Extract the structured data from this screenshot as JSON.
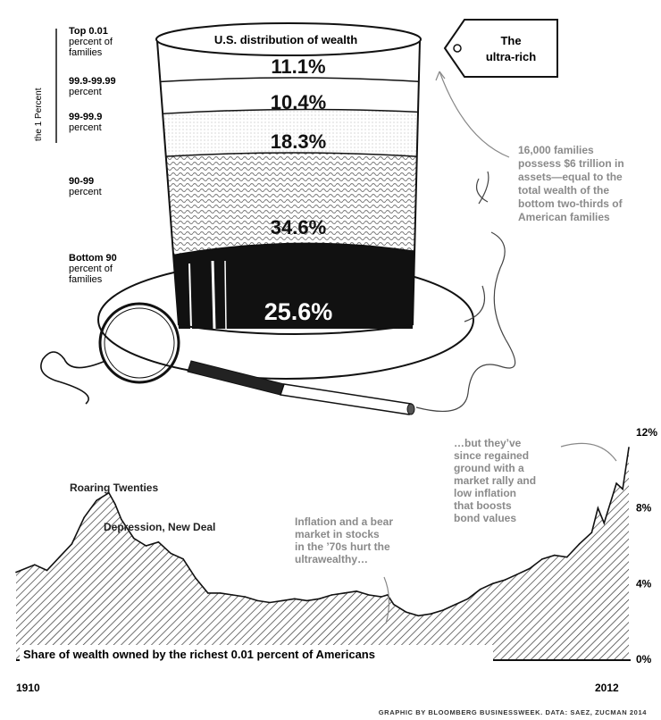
{
  "colors": {
    "ink": "#111111",
    "gray_text": "#8a8a8a",
    "hatch": "#333333",
    "background": "#ffffff"
  },
  "hat": {
    "title": "U.S. distribution of wealth",
    "bracket_label": "the 1 Percent",
    "tag_lines": [
      "The",
      "ultra-rich"
    ],
    "annotation_lines": [
      "16,000 families",
      "possess $6 trillion in",
      "assets—equal to the",
      "total wealth of the",
      "bottom two-thirds of",
      "American families"
    ]
  },
  "chart_data": [
    {
      "type": "stacked-bar",
      "title": "U.S. distribution of wealth",
      "unit": "percent",
      "groups": [
        {
          "name": "Top 0.01 percent of families",
          "label_lines": [
            "Top 0.01",
            "percent of",
            "families"
          ],
          "value": 11.1,
          "display": "11.1%",
          "fill": "white"
        },
        {
          "name": "99.9-99.99 percent",
          "label_lines": [
            "99.9-99.99",
            "percent"
          ],
          "value": 10.4,
          "display": "10.4%",
          "fill": "white"
        },
        {
          "name": "99-99.9 percent",
          "label_lines": [
            "99-99.9",
            "percent"
          ],
          "value": 18.3,
          "display": "18.3%",
          "fill": "light-gray"
        },
        {
          "name": "90-99 percent",
          "label_lines": [
            "90-99",
            "percent"
          ],
          "value": 34.6,
          "display": "34.6%",
          "fill": "wavy-pattern"
        },
        {
          "name": "Bottom 90 percent of families",
          "label_lines": [
            "Bottom 90",
            "percent of",
            "families"
          ],
          "value": 25.6,
          "display": "25.6%",
          "fill": "black"
        }
      ]
    },
    {
      "type": "area",
      "title": "Share of wealth owned by the richest 0.01 percent of Americans",
      "x_tick_labels": [
        "1910",
        "2012"
      ],
      "y_tick_labels": [
        "12%",
        "8%",
        "4%",
        "0%"
      ],
      "ylim": [
        0,
        12
      ],
      "xlim": [
        1913,
        2012
      ],
      "x": [
        1913,
        1916,
        1918,
        1920,
        1922,
        1924,
        1926,
        1928,
        1929,
        1930,
        1932,
        1934,
        1936,
        1938,
        1940,
        1942,
        1944,
        1946,
        1948,
        1950,
        1952,
        1954,
        1956,
        1958,
        1960,
        1962,
        1964,
        1966,
        1968,
        1970,
        1972,
        1973,
        1974,
        1976,
        1978,
        1980,
        1982,
        1984,
        1986,
        1988,
        1990,
        1992,
        1994,
        1996,
        1998,
        2000,
        2002,
        2004,
        2006,
        2007,
        2008,
        2010,
        2011,
        2012
      ],
      "y": [
        4.6,
        5.0,
        4.7,
        5.4,
        6.1,
        7.5,
        8.4,
        8.8,
        8.2,
        7.4,
        6.4,
        6.0,
        6.2,
        5.6,
        5.3,
        4.3,
        3.5,
        3.5,
        3.4,
        3.3,
        3.1,
        3.0,
        3.1,
        3.2,
        3.1,
        3.2,
        3.4,
        3.5,
        3.6,
        3.4,
        3.3,
        3.4,
        2.9,
        2.5,
        2.3,
        2.4,
        2.6,
        2.9,
        3.2,
        3.7,
        4.0,
        4.2,
        4.5,
        4.8,
        5.3,
        5.5,
        5.4,
        6.1,
        6.7,
        8.0,
        7.2,
        9.3,
        9.0,
        11.2
      ],
      "annotations": [
        {
          "lines": [
            "Roaring Twenties"
          ],
          "x": 1929,
          "style": "dark"
        },
        {
          "lines": [
            "Depression, New Deal"
          ],
          "x": 1933,
          "style": "dark"
        },
        {
          "lines": [
            "Inflation and a bear",
            "market in stocks",
            "in the ’70s hurt the",
            "ultrawealthy…"
          ],
          "x": 1976,
          "style": "gray"
        },
        {
          "lines": [
            "…but they’ve",
            "since regained",
            "ground with a",
            "market rally and",
            "low inflation",
            "that boosts",
            "bond values"
          ],
          "x": 2010,
          "style": "gray"
        }
      ]
    }
  ],
  "credit": "GRAPHIC BY BLOOMBERG BUSINESSWEEK. DATA: SAEZ, ZUCMAN 2014"
}
